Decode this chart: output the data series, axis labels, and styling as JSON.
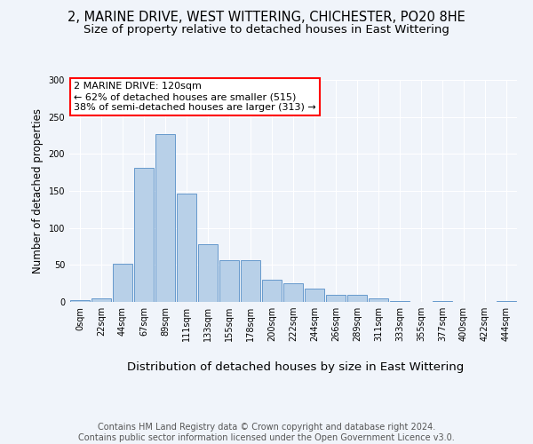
{
  "title1": "2, MARINE DRIVE, WEST WITTERING, CHICHESTER, PO20 8HE",
  "title2": "Size of property relative to detached houses in East Wittering",
  "xlabel": "Distribution of detached houses by size in East Wittering",
  "ylabel": "Number of detached properties",
  "bar_labels": [
    "0sqm",
    "22sqm",
    "44sqm",
    "67sqm",
    "89sqm",
    "111sqm",
    "133sqm",
    "155sqm",
    "178sqm",
    "200sqm",
    "222sqm",
    "244sqm",
    "266sqm",
    "289sqm",
    "311sqm",
    "333sqm",
    "355sqm",
    "377sqm",
    "400sqm",
    "422sqm",
    "444sqm"
  ],
  "bar_heights": [
    2,
    5,
    52,
    181,
    227,
    146,
    78,
    56,
    56,
    30,
    25,
    18,
    10,
    10,
    5,
    1,
    0,
    1,
    0,
    0,
    1
  ],
  "bar_color": "#b8d0e8",
  "bar_edge_color": "#6699cc",
  "annotation_text": "2 MARINE DRIVE: 120sqm\n← 62% of detached houses are smaller (515)\n38% of semi-detached houses are larger (313) →",
  "ylim": [
    0,
    300
  ],
  "yticks": [
    0,
    50,
    100,
    150,
    200,
    250,
    300
  ],
  "background_color": "#f0f4fa",
  "footer_text": "Contains HM Land Registry data © Crown copyright and database right 2024.\nContains public sector information licensed under the Open Government Licence v3.0.",
  "title_fontsize": 10.5,
  "subtitle_fontsize": 9.5,
  "xlabel_fontsize": 9.5,
  "ylabel_fontsize": 8.5,
  "tick_fontsize": 7,
  "annotation_fontsize": 8,
  "footer_fontsize": 7
}
